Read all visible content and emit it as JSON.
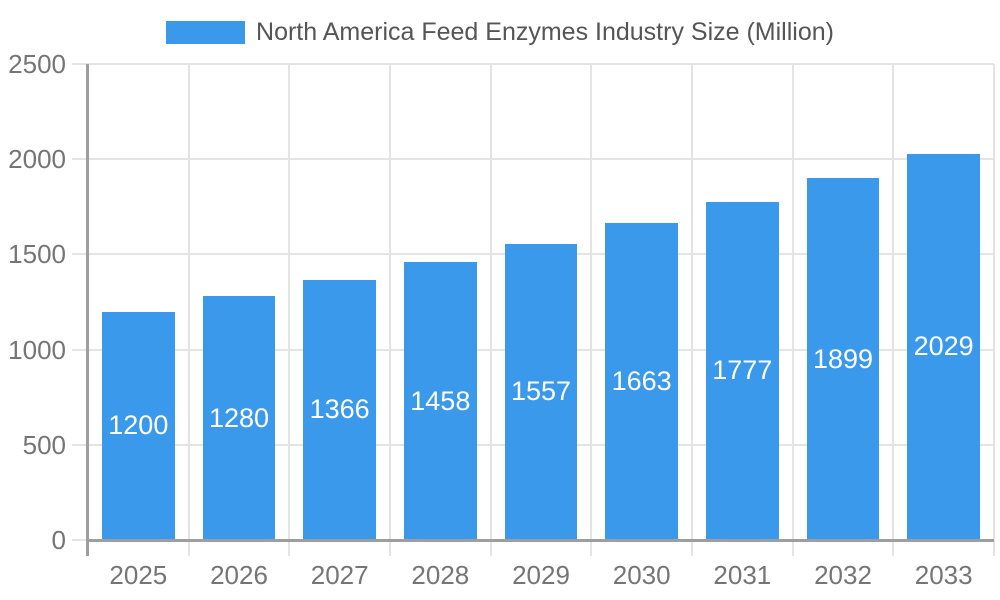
{
  "chart_data": {
    "type": "bar",
    "title": "North America Feed Enzymes Industry Size (Million)",
    "legend_position": "top",
    "categories": [
      "2025",
      "2026",
      "2027",
      "2028",
      "2029",
      "2030",
      "2031",
      "2032",
      "2033"
    ],
    "values": [
      1200,
      1280,
      1366,
      1458,
      1557,
      1663,
      1777,
      1899,
      2029
    ],
    "xlabel": "",
    "ylabel": "",
    "ylim": [
      0,
      2500
    ],
    "yticks": [
      0,
      500,
      1000,
      1500,
      2000,
      2500
    ],
    "grid": true,
    "bar_value_labels": true,
    "colors": {
      "bar": "#3B99EC",
      "grid": "#E4E4E4",
      "axis": "#9E9E9E",
      "tick_label": "#757575",
      "legend_text": "#555555",
      "bar_label": "#FFFFFF",
      "background": "#FFFFFF"
    }
  }
}
